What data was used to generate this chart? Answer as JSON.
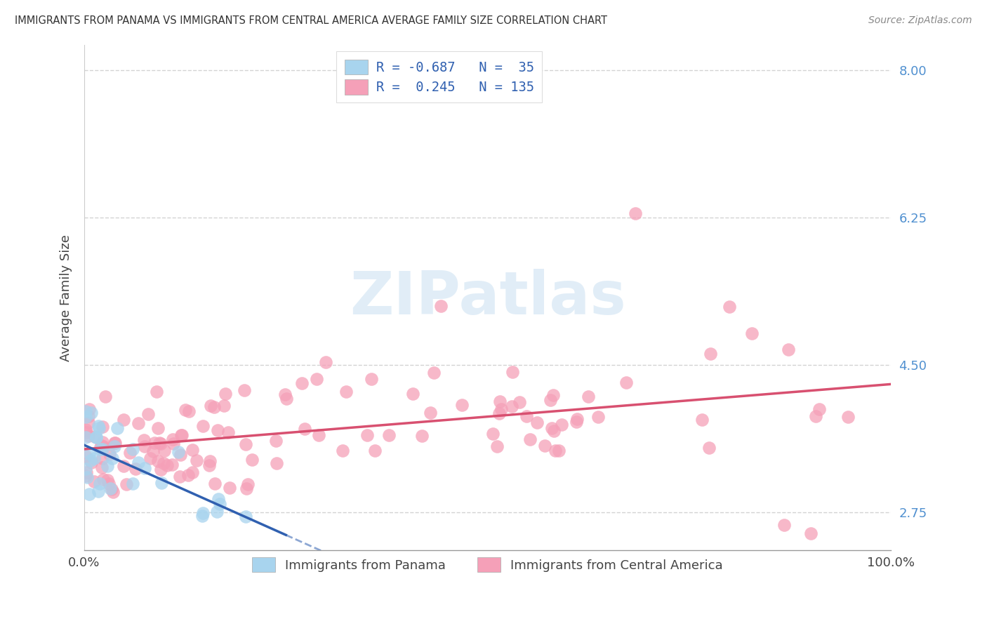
{
  "title": "IMMIGRANTS FROM PANAMA VS IMMIGRANTS FROM CENTRAL AMERICA AVERAGE FAMILY SIZE CORRELATION CHART",
  "source": "Source: ZipAtlas.com",
  "ylabel": "Average Family Size",
  "xmin": 0.0,
  "xmax": 100.0,
  "ymin": 2.3,
  "ymax": 8.3,
  "ytick_vals": [
    2.75,
    4.5,
    6.25,
    8.0
  ],
  "ytick_labels": [
    "2.75",
    "4.50",
    "6.25",
    "8.00"
  ],
  "panama_R": -0.687,
  "panama_N": 35,
  "central_R": 0.245,
  "central_N": 135,
  "panama_scatter_color": "#a8d4ee",
  "central_scatter_color": "#f5a0b8",
  "panama_line_color": "#3060b0",
  "central_line_color": "#d85070",
  "legend_text_color": "#3060b0",
  "background_color": "#ffffff",
  "grid_color": "#c8c8c8",
  "title_color": "#333333",
  "source_color": "#888888",
  "ytick_color": "#5090d0",
  "watermark_color": "#c5ddf0",
  "watermark_alpha": 0.5
}
